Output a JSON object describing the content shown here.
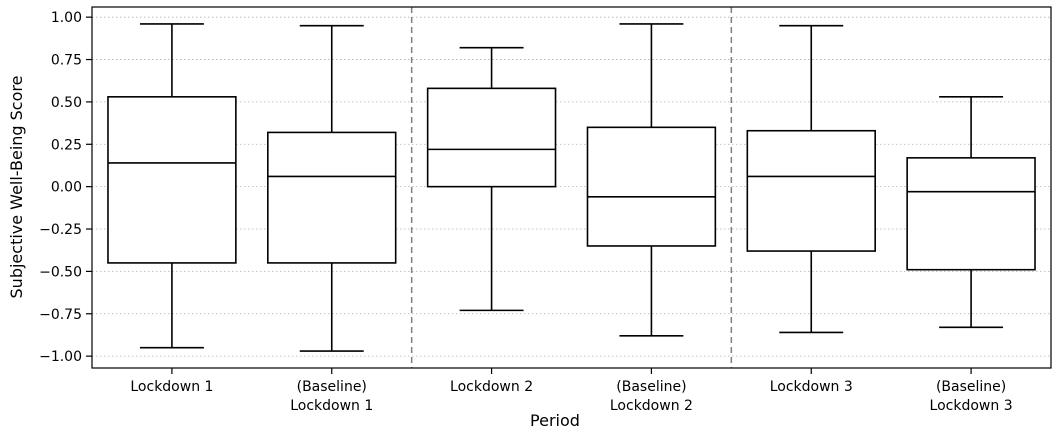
{
  "chart_data": {
    "type": "box",
    "x_label": "Period",
    "y_label": "Subjective Well-Being Score",
    "categories": [
      [
        "Lockdown 1"
      ],
      [
        "(Baseline)",
        "Lockdown 1"
      ],
      [
        "Lockdown 2"
      ],
      [
        "(Baseline)",
        "Lockdown 2"
      ],
      [
        "Lockdown 3"
      ],
      [
        "(Baseline)",
        "Lockdown 3"
      ]
    ],
    "boxes": [
      {
        "whisker_low": -0.95,
        "q1": -0.45,
        "median": 0.14,
        "q3": 0.53,
        "whisker_high": 0.96
      },
      {
        "whisker_low": -0.97,
        "q1": -0.45,
        "median": 0.06,
        "q3": 0.32,
        "whisker_high": 0.95
      },
      {
        "whisker_low": -0.73,
        "q1": 0.0,
        "median": 0.22,
        "q3": 0.58,
        "whisker_high": 0.82
      },
      {
        "whisker_low": -0.88,
        "q1": -0.35,
        "median": -0.06,
        "q3": 0.35,
        "whisker_high": 0.96
      },
      {
        "whisker_low": -0.86,
        "q1": -0.38,
        "median": 0.06,
        "q3": 0.33,
        "whisker_high": 0.95
      },
      {
        "whisker_low": -0.83,
        "q1": -0.49,
        "median": -0.03,
        "q3": 0.17,
        "whisker_high": 0.53
      }
    ],
    "color": "#000000",
    "ylim": [
      -1.07,
      1.06
    ],
    "yticks": [
      {
        "value": -1.0,
        "label": "−1.00"
      },
      {
        "value": -0.75,
        "label": "−0.75"
      },
      {
        "value": -0.5,
        "label": "−0.50"
      },
      {
        "value": -0.25,
        "label": "−0.25"
      },
      {
        "value": 0.0,
        "label": "0.00"
      },
      {
        "value": 0.25,
        "label": "0.25"
      },
      {
        "value": 0.5,
        "label": "0.50"
      },
      {
        "value": 0.75,
        "label": "0.75"
      },
      {
        "value": 1.0,
        "label": "1.00"
      }
    ],
    "grid": true
  }
}
